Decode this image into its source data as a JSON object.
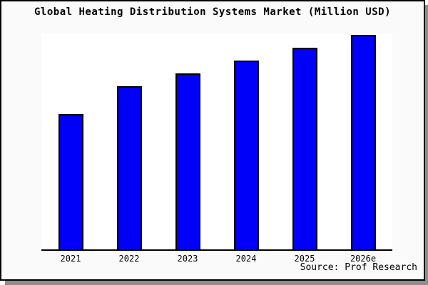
{
  "page": {
    "title": "Global Heating Distribution Systems Market (Million USD)",
    "source": "Source: Prof Research"
  },
  "chart_data": {
    "type": "bar",
    "title": "Global Heating Distribution Systems Market (Million USD)",
    "categories": [
      "2021",
      "2022",
      "2023",
      "2024",
      "2025",
      "2026e"
    ],
    "values": [
      63,
      76,
      82,
      88,
      94,
      100
    ],
    "value_note": "no y-axis scale or value labels shown in chart; values are relative bar heights with tallest bar (2026e) = 100",
    "xlabel": "",
    "ylabel": "",
    "grid": false,
    "legend": false,
    "bar_color": "#0000fa",
    "bar_border_color": "#000000",
    "source": "Source: Prof Research"
  }
}
